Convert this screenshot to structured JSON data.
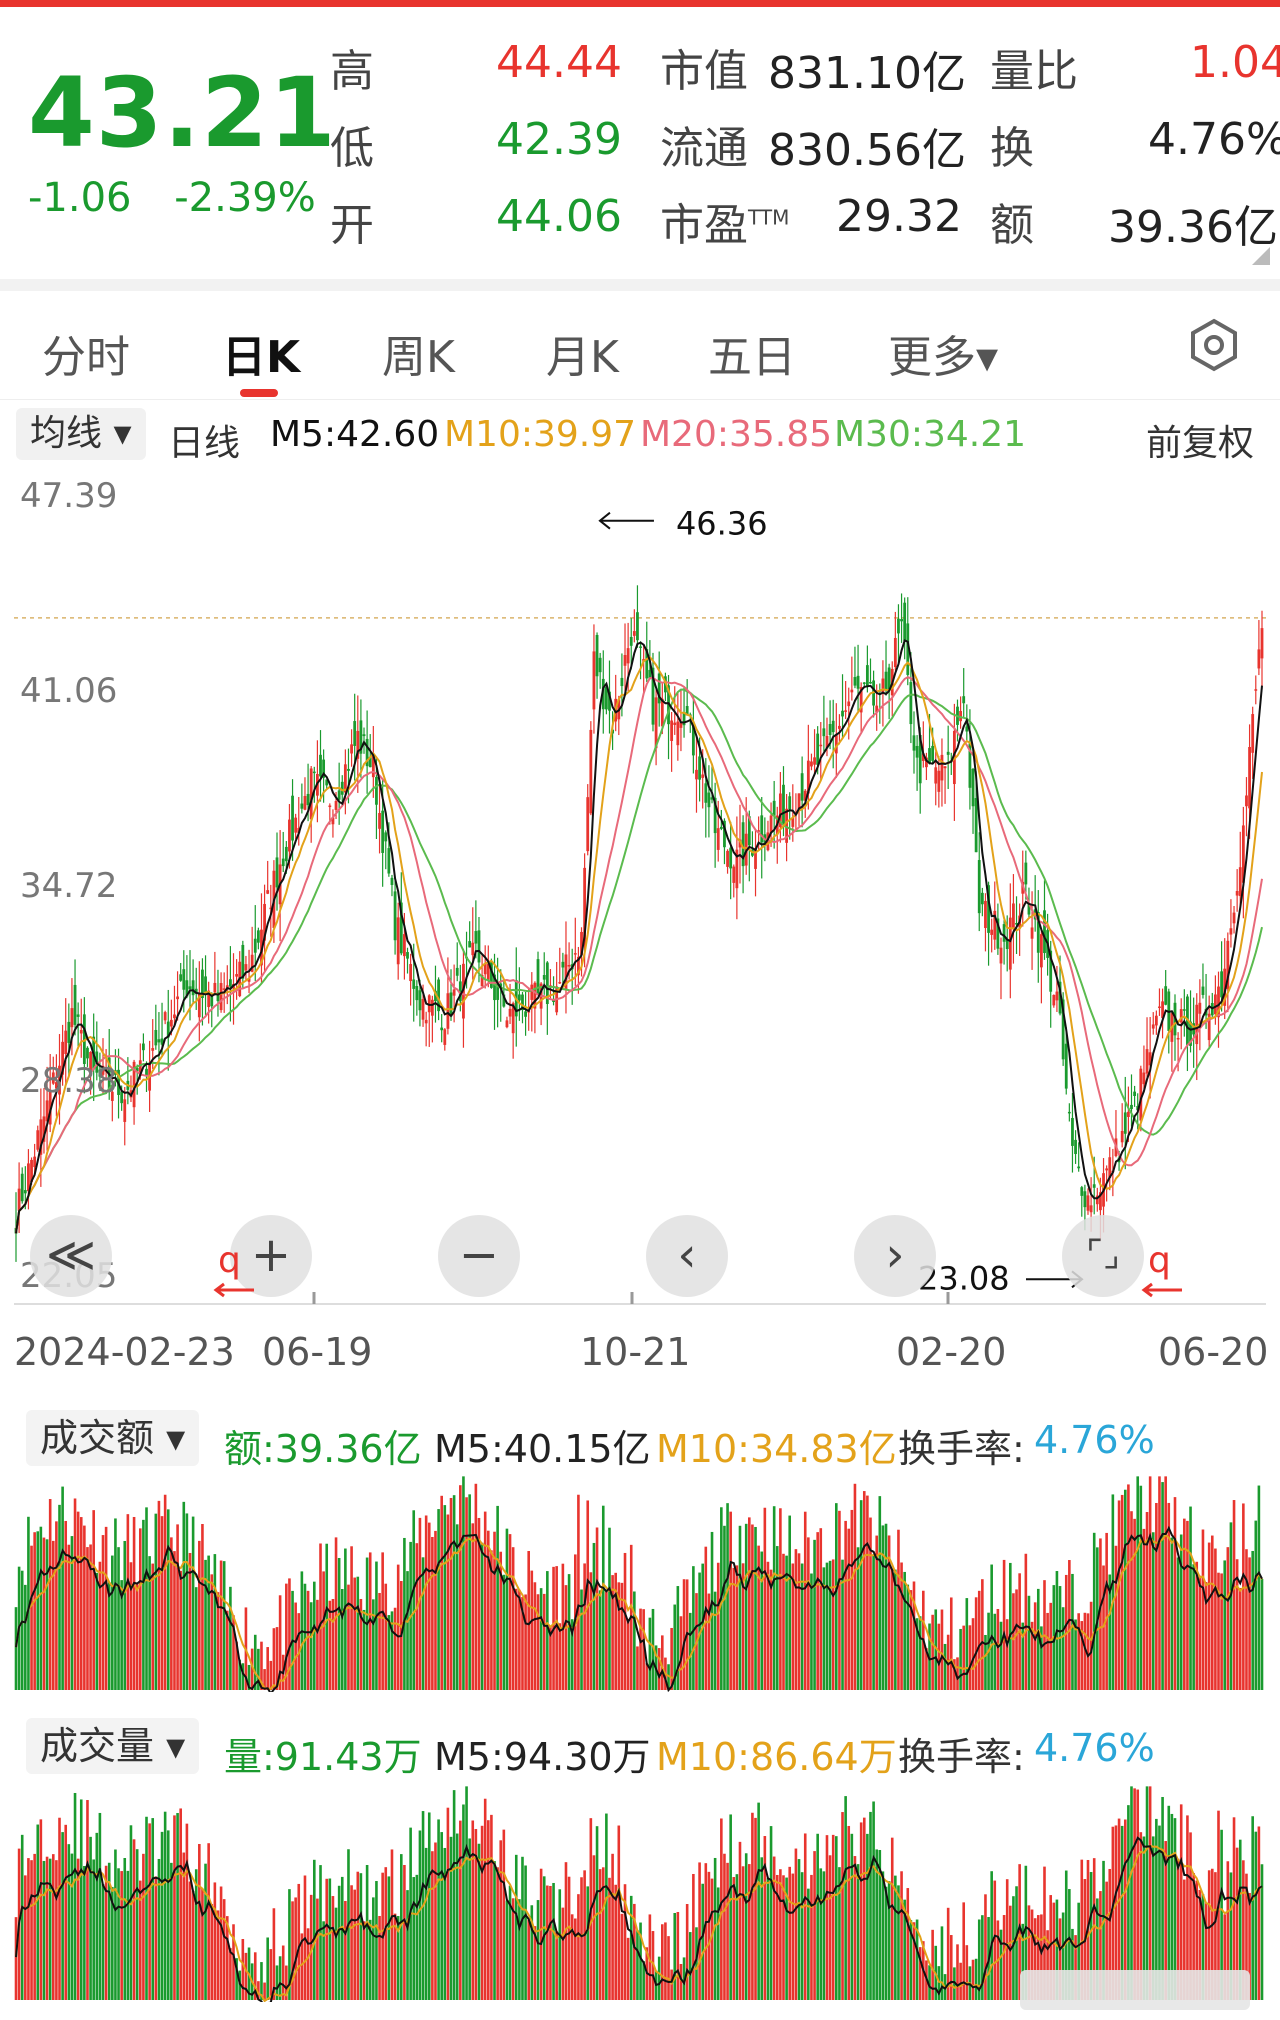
{
  "quote": {
    "price": "43.21",
    "change": "-1.06",
    "change_pct": "-2.39%",
    "high_label": "高",
    "high": "44.44",
    "low_label": "低",
    "low": "42.39",
    "open_label": "开",
    "open": "44.06",
    "mktcap_label": "市值",
    "mktcap": "831.10亿",
    "float_label": "流通",
    "float": "830.56亿",
    "pe_label": "市盈",
    "pe_sup": "TTM",
    "pe": "29.32",
    "volratio_label": "量比",
    "volratio": "1.04",
    "turnover_label": "换",
    "turnover": "4.76%",
    "amount_label": "额",
    "amount": "39.36亿"
  },
  "tabs": [
    {
      "label": "分时"
    },
    {
      "label": "日K"
    },
    {
      "label": "周K"
    },
    {
      "label": "月K"
    },
    {
      "label": "五日"
    },
    {
      "label": "更多▾"
    }
  ],
  "ma_bar": {
    "chip": "均线 ▾",
    "period": "日线",
    "m5": "M5:42.60",
    "m10": "M10:39.97",
    "m20": "M20:35.85",
    "m30": "M30:34.21",
    "adjust": "前复权"
  },
  "colors": {
    "up": "#e8342e",
    "down": "#1a9a2e",
    "m5": "#111111",
    "m10": "#e3a21a",
    "m20": "#e86a7a",
    "m30": "#5bbb4e",
    "turnover": "#2aa6d8"
  },
  "chart_data": {
    "type": "candlestick",
    "y_ticks": [
      "47.39",
      "41.06",
      "34.72",
      "28.38",
      "22.05"
    ],
    "ylim": [
      22.05,
      47.39
    ],
    "x_ticks": [
      "2024-02-23",
      "06-19",
      "10-21",
      "02-20",
      "06-20"
    ],
    "max_label": "46.36",
    "min_label": "23.08",
    "close_path": [
      [
        0,
        24.0
      ],
      [
        10,
        27.5
      ],
      [
        18,
        30.5
      ],
      [
        25,
        28.5
      ],
      [
        35,
        28.0
      ],
      [
        45,
        29.5
      ],
      [
        55,
        31.5
      ],
      [
        65,
        31.0
      ],
      [
        75,
        32.0
      ],
      [
        85,
        35.5
      ],
      [
        95,
        38.0
      ],
      [
        102,
        37.5
      ],
      [
        110,
        39.5
      ],
      [
        115,
        38.5
      ],
      [
        122,
        33.5
      ],
      [
        130,
        31.0
      ],
      [
        138,
        30.5
      ],
      [
        148,
        32.5
      ],
      [
        158,
        30.5
      ],
      [
        168,
        31.0
      ],
      [
        175,
        31.5
      ],
      [
        182,
        33.0
      ],
      [
        186,
        42.0
      ],
      [
        192,
        40.0
      ],
      [
        198,
        43.0
      ],
      [
        205,
        40.5
      ],
      [
        215,
        40.5
      ],
      [
        225,
        36.5
      ],
      [
        232,
        35.5
      ],
      [
        240,
        36.5
      ],
      [
        250,
        37.5
      ],
      [
        260,
        39.0
      ],
      [
        270,
        41.0
      ],
      [
        278,
        40.5
      ],
      [
        285,
        43.0
      ],
      [
        290,
        38.5
      ],
      [
        300,
        38.5
      ],
      [
        305,
        41.0
      ],
      [
        310,
        34.0
      ],
      [
        318,
        33.0
      ],
      [
        325,
        34.5
      ],
      [
        335,
        31.0
      ],
      [
        340,
        26.0
      ],
      [
        345,
        24.5
      ],
      [
        352,
        25.5
      ],
      [
        360,
        27.5
      ],
      [
        368,
        30.5
      ],
      [
        378,
        30.0
      ],
      [
        388,
        31.5
      ],
      [
        395,
        36.5
      ],
      [
        398,
        40.0
      ],
      [
        401,
        43.2
      ]
    ],
    "ma5": "42.60",
    "ma10": "39.97",
    "ma20": "35.85",
    "ma30": "34.21"
  },
  "amount_panel": {
    "chip": "成交额 ▾",
    "amount": "额:39.36亿",
    "m5": "M5:40.15亿",
    "m10": "M10:34.83亿",
    "turnover_label": "换手率:",
    "turnover": "4.76%"
  },
  "volume_panel": {
    "chip": "成交量 ▾",
    "volume": "量:91.43万",
    "m5": "M5:94.30万",
    "m10": "M10:86.64万",
    "turnover_label": "换手率:",
    "turnover": "4.76%"
  },
  "controls": {
    "rewind": "≪",
    "zoom_in": "+",
    "zoom_out": "−",
    "prev": "‹",
    "next": "›",
    "fullscreen": "⌜⌟",
    "q_left": "q",
    "q_right": "q"
  }
}
